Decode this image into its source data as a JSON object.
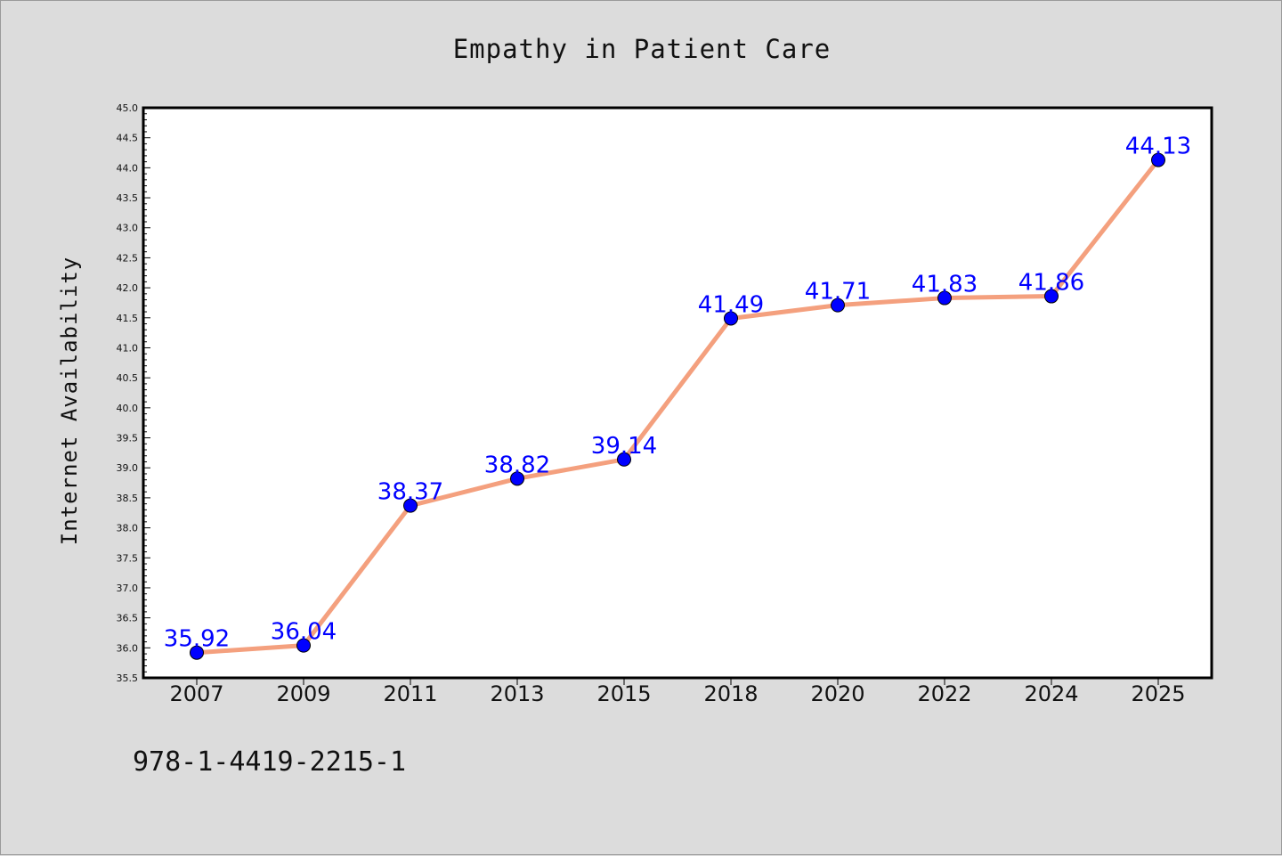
{
  "chart_data": {
    "type": "line",
    "title": "Empathy in Patient Care",
    "xlabel": "",
    "ylabel": "Internet Availability",
    "categories": [
      "2007",
      "2009",
      "2011",
      "2013",
      "2015",
      "2018",
      "2020",
      "2022",
      "2024",
      "2025"
    ],
    "series": [
      {
        "values": [
          35.92,
          36.04,
          38.37,
          38.82,
          39.14,
          41.49,
          41.71,
          41.83,
          41.86,
          44.13
        ],
        "data_labels": [
          "35.92",
          "36.04",
          "38.37",
          "38.82",
          "39.14",
          "41.49",
          "41.71",
          "41.83",
          "41.86",
          "44.13"
        ]
      }
    ],
    "ylim": [
      35.5,
      45.0
    ],
    "yticks": [
      "35.5",
      "36.0",
      "36.5",
      "37.0",
      "37.5",
      "38.0",
      "38.5",
      "39.0",
      "39.5",
      "40.0",
      "40.5",
      "41.0",
      "41.5",
      "42.0",
      "42.5",
      "43.0",
      "43.5",
      "44.0",
      "44.5",
      "45.0"
    ],
    "grid": false,
    "colors": {
      "line": "#f4a07e",
      "marker": "#0000ff",
      "data_label": "#0000ff",
      "background": "#dcdcdc",
      "plot_background": "#ffffff"
    }
  },
  "footer": {
    "isbn": "978-1-4419-2215-1"
  }
}
